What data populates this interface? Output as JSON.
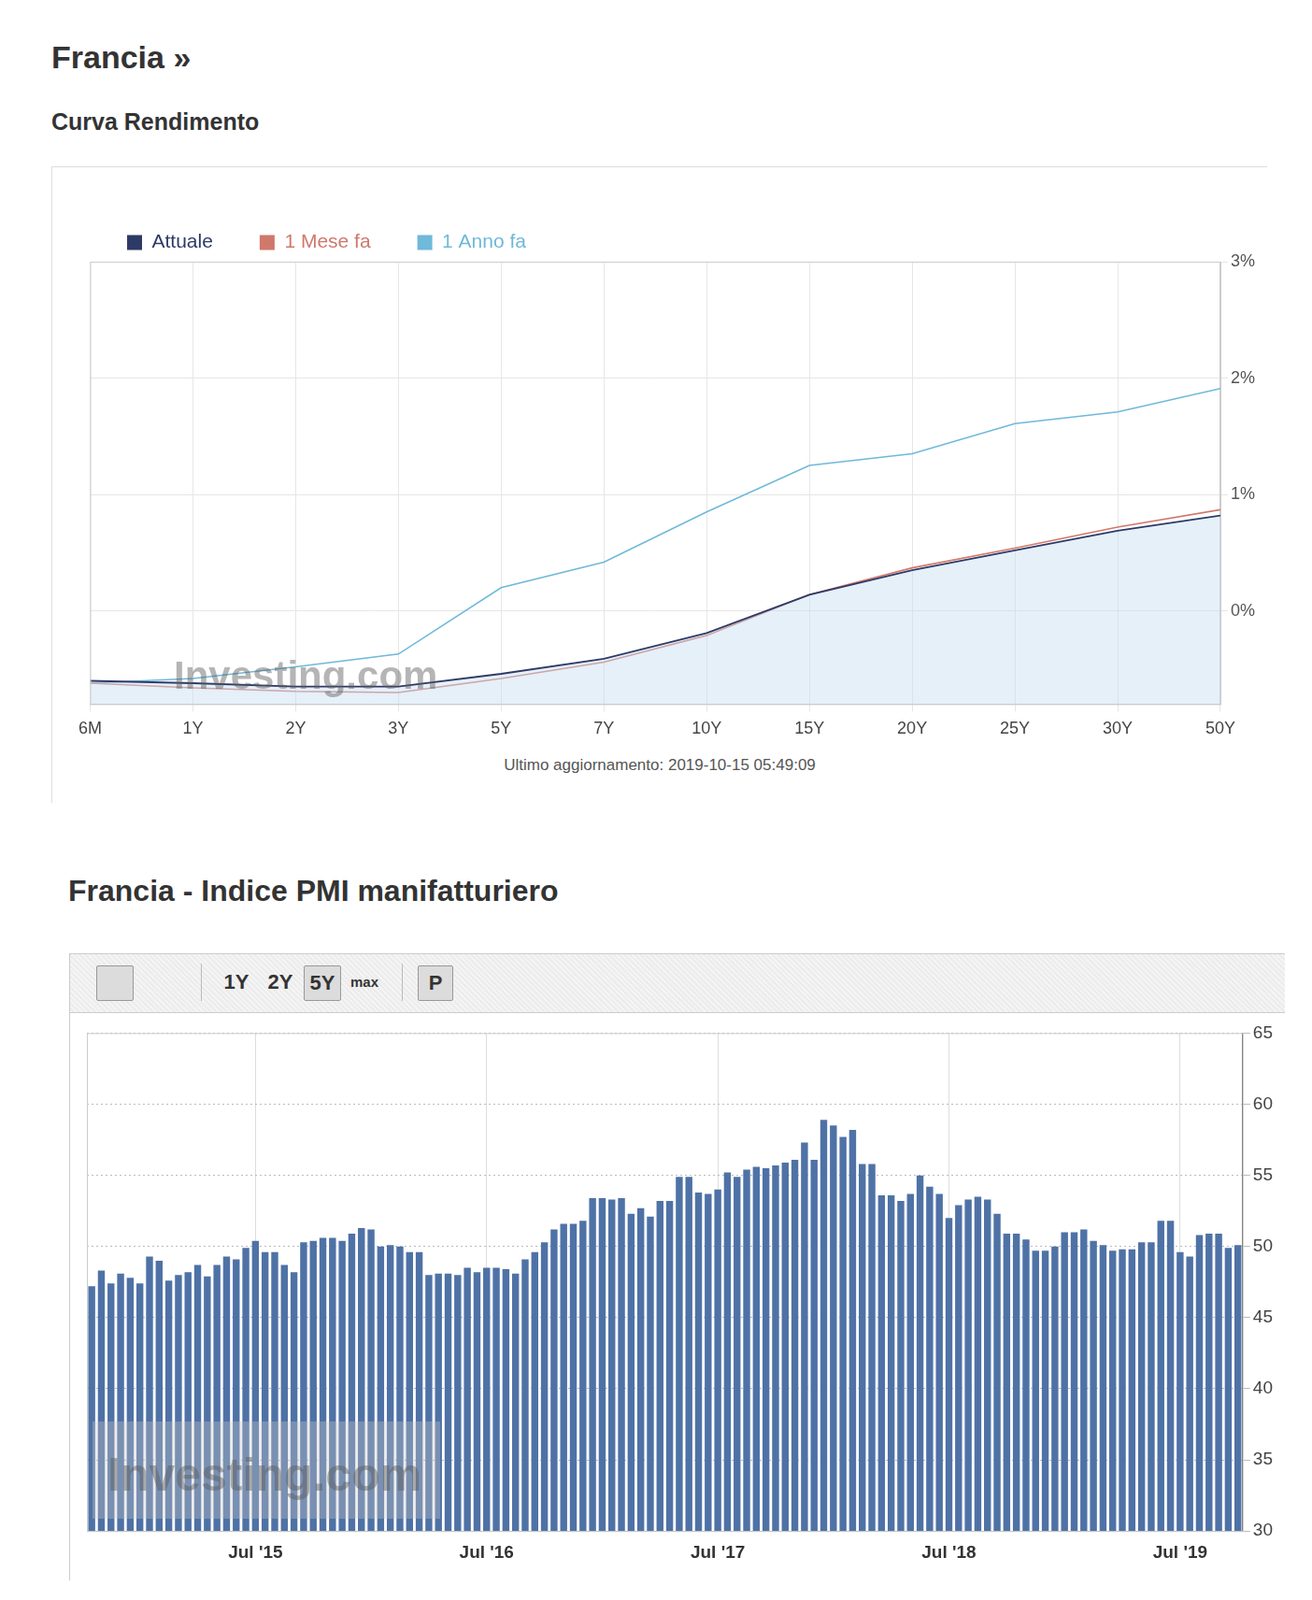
{
  "chart_data": [
    {
      "type": "line",
      "title": "Francia »",
      "subtitle": "Curva Rendimento",
      "categories": [
        "6M",
        "1Y",
        "2Y",
        "3Y",
        "5Y",
        "7Y",
        "10Y",
        "15Y",
        "20Y",
        "25Y",
        "30Y",
        "50Y"
      ],
      "series": [
        {
          "name": "Attuale",
          "color": "#2e3a66",
          "values": [
            -0.6,
            -0.62,
            -0.65,
            -0.65,
            -0.54,
            -0.41,
            -0.19,
            0.14,
            0.35,
            0.52,
            0.69,
            0.82
          ]
        },
        {
          "name": "1 Mese fa",
          "color": "#d0786c",
          "values": [
            -0.62,
            -0.66,
            -0.69,
            -0.7,
            -0.58,
            -0.44,
            -0.21,
            0.14,
            0.37,
            0.54,
            0.72,
            0.87
          ]
        },
        {
          "name": "1 Anno fa",
          "color": "#6fb9d9",
          "values": [
            -0.62,
            -0.58,
            -0.48,
            -0.37,
            0.2,
            0.42,
            0.85,
            1.25,
            1.35,
            1.61,
            1.71,
            1.91
          ]
        }
      ],
      "ylim": [
        -0.8,
        3
      ],
      "yticks": [
        {
          "value": 0,
          "label": "0%"
        },
        {
          "value": 1,
          "label": "1%"
        },
        {
          "value": 2,
          "label": "2%"
        },
        {
          "value": 3,
          "label": "3%"
        }
      ],
      "grid": true,
      "legend": "top-left",
      "watermark": "Investing.com",
      "annotations": [
        "Ultimo aggiornamento: 2019-10-15 05:49:09"
      ]
    },
    {
      "type": "bar",
      "title": "Francia - Indice PMI manifatturiero",
      "buttons": [
        "1Y",
        "2Y",
        "5Y",
        "max",
        "P"
      ],
      "watermark": "Investing.com",
      "categories": [
        null,
        null,
        null,
        null,
        null,
        null,
        null,
        null,
        null,
        null,
        null,
        null,
        null,
        null,
        null,
        null,
        null,
        "Jul '15",
        null,
        null,
        null,
        null,
        null,
        null,
        null,
        null,
        null,
        null,
        null,
        null,
        null,
        null,
        null,
        null,
        null,
        null,
        null,
        null,
        null,
        null,
        null,
        "Jul '16",
        null,
        null,
        null,
        null,
        null,
        null,
        null,
        null,
        null,
        null,
        null,
        null,
        null,
        null,
        null,
        null,
        null,
        null,
        null,
        null,
        null,
        null,
        null,
        "Jul '17",
        null,
        null,
        null,
        null,
        null,
        null,
        null,
        null,
        null,
        null,
        null,
        null,
        null,
        null,
        null,
        null,
        null,
        null,
        null,
        null,
        null,
        null,
        null,
        "Jul '18",
        null,
        null,
        null,
        null,
        null,
        null,
        null,
        null,
        null,
        null,
        null,
        null,
        null,
        null,
        null,
        null,
        null,
        null,
        null,
        null,
        null,
        null,
        null,
        "Jul '19",
        null,
        null,
        null,
        null,
        null,
        null
      ],
      "values": [
        47.2,
        48.3,
        47.4,
        48.1,
        47.8,
        47.4,
        49.3,
        49.0,
        47.6,
        48.0,
        48.2,
        48.7,
        47.9,
        48.7,
        49.3,
        49.1,
        49.9,
        50.4,
        49.6,
        49.6,
        48.7,
        48.2,
        50.3,
        50.4,
        50.6,
        50.6,
        50.4,
        50.9,
        51.3,
        51.2,
        50.0,
        50.1,
        50.0,
        49.6,
        49.6,
        48.0,
        48.1,
        48.1,
        48.0,
        48.5,
        48.2,
        48.5,
        48.5,
        48.4,
        48.1,
        49.1,
        49.6,
        50.3,
        51.2,
        51.6,
        51.6,
        51.8,
        53.4,
        53.4,
        53.3,
        53.4,
        52.3,
        52.7,
        52.1,
        53.2,
        53.2,
        54.9,
        54.9,
        53.8,
        53.7,
        54.0,
        55.2,
        54.9,
        55.4,
        55.6,
        55.5,
        55.7,
        55.9,
        56.1,
        57.3,
        56.1,
        58.9,
        58.5,
        57.7,
        58.2,
        55.8,
        55.8,
        53.6,
        53.6,
        53.2,
        53.7,
        55.0,
        54.2,
        53.7,
        52.0,
        52.9,
        53.3,
        53.5,
        53.3,
        52.3,
        50.9,
        50.9,
        50.5,
        49.7,
        49.7,
        50.0,
        51.0,
        51.0,
        51.2,
        50.4,
        50.1,
        49.7,
        49.8,
        49.8,
        50.3,
        50.3,
        51.8,
        51.8,
        49.6,
        49.3,
        50.8,
        50.9,
        50.9,
        49.9,
        50.1
      ],
      "color": "#4f72a6",
      "ylim": [
        30,
        65
      ],
      "yticks": [
        30,
        35,
        40,
        45,
        50,
        55,
        60,
        65
      ],
      "grid": true
    }
  ]
}
